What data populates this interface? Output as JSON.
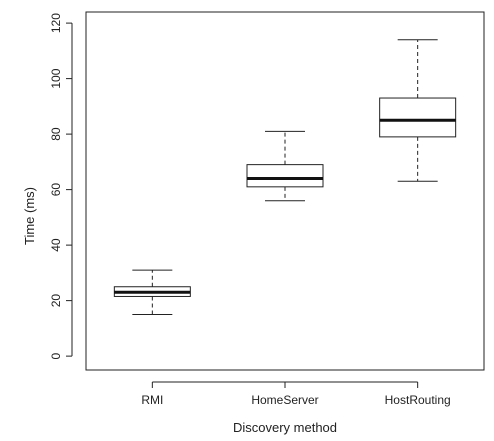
{
  "chart_data": {
    "type": "box",
    "title": "",
    "xlabel": "Discovery method",
    "ylabel": "Time (ms)",
    "ylim": [
      -5,
      124
    ],
    "yticks": [
      0,
      20,
      40,
      60,
      80,
      100,
      120
    ],
    "ytick_labels": [
      "0",
      "20",
      "40",
      "60",
      "80",
      "100",
      "120"
    ],
    "grid": false,
    "categories": [
      "RMI",
      "HomeServer",
      "HostRouting"
    ],
    "boxes": [
      {
        "category": "RMI",
        "whisker_low": 15,
        "q1": 21.5,
        "median": 23,
        "q3": 25,
        "whisker_high": 31
      },
      {
        "category": "HomeServer",
        "whisker_low": 56,
        "q1": 61,
        "median": 64,
        "q3": 69,
        "whisker_high": 81
      },
      {
        "category": "HostRouting",
        "whisker_low": 63,
        "q1": 79,
        "median": 85,
        "q3": 93,
        "whisker_high": 114
      }
    ]
  }
}
